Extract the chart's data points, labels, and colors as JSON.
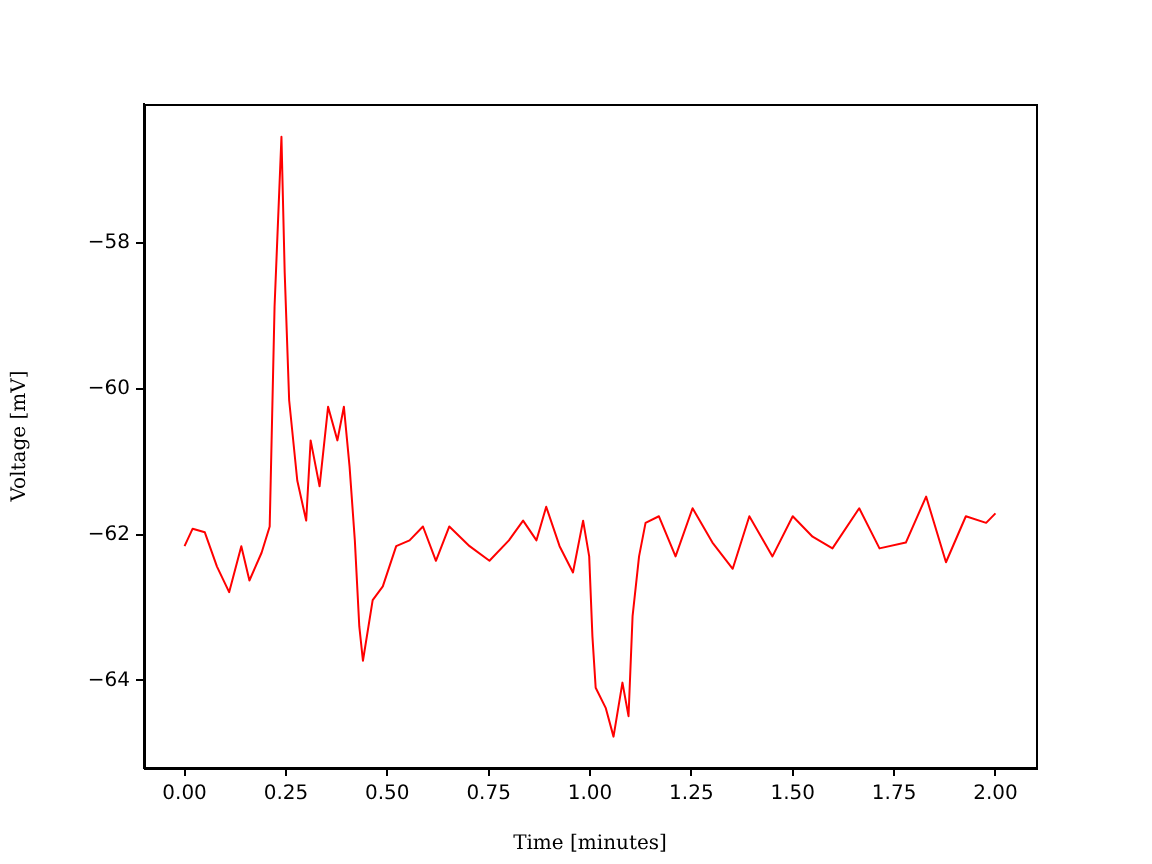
{
  "chart_data": {
    "type": "line",
    "xlabel": "Time [minutes]",
    "ylabel": "Voltage [mV]",
    "x": [
      0,
      0.02,
      0.05,
      0.08,
      0.11,
      0.14,
      0.16,
      0.19,
      0.21,
      0.222,
      0.239,
      0.247,
      0.258,
      0.278,
      0.3,
      0.311,
      0.333,
      0.354,
      0.377,
      0.393,
      0.407,
      0.42,
      0.431,
      0.44,
      0.464,
      0.489,
      0.522,
      0.555,
      0.588,
      0.62,
      0.653,
      0.703,
      0.752,
      0.8,
      0.835,
      0.868,
      0.892,
      0.925,
      0.958,
      0.983,
      0.998,
      1.006,
      1.014,
      1.039,
      1.058,
      1.08,
      1.095,
      1.105,
      1.121,
      1.137,
      1.17,
      1.211,
      1.253,
      1.302,
      1.352,
      1.393,
      1.45,
      1.5,
      1.549,
      1.598,
      1.664,
      1.714,
      1.779,
      1.829,
      1.878,
      1.927,
      1.977,
      2.0
    ],
    "series": [
      {
        "color": "#ff0000",
        "values": [
          -62.16,
          -61.92,
          -61.97,
          -62.44,
          -62.79,
          -62.16,
          -62.63,
          -62.25,
          -61.89,
          -58.88,
          -56.55,
          -58.41,
          -60.16,
          -61.26,
          -61.81,
          -60.71,
          -61.34,
          -60.25,
          -60.71,
          -60.25,
          -61.07,
          -62.08,
          -63.26,
          -63.73,
          -62.9,
          -62.71,
          -62.16,
          -62.08,
          -61.89,
          -62.36,
          -61.89,
          -62.16,
          -62.36,
          -62.08,
          -61.81,
          -62.08,
          -61.62,
          -62.16,
          -62.52,
          -61.81,
          -62.3,
          -63.4,
          -64.1,
          -64.38,
          -64.77,
          -64.03,
          -64.49,
          -63.12,
          -62.3,
          -61.84,
          -61.75,
          -62.3,
          -61.64,
          -62.11,
          -62.47,
          -61.75,
          -62.3,
          -61.75,
          -62.03,
          -62.19,
          -61.64,
          -62.19,
          -62.11,
          -61.48,
          -62.38,
          -61.75,
          -61.84,
          -61.71
        ]
      }
    ],
    "xlim": [
      -0.1,
      2.1
    ],
    "ylim": [
      -65.2,
      -56.1
    ],
    "xticks": [
      {
        "value": 0,
        "label": "0.00"
      },
      {
        "value": 0.25,
        "label": "0.25"
      },
      {
        "value": 0.5,
        "label": "0.50"
      },
      {
        "value": 0.75,
        "label": "0.75"
      },
      {
        "value": 1,
        "label": "1.00"
      },
      {
        "value": 1.25,
        "label": "1.25"
      },
      {
        "value": 1.5,
        "label": "1.50"
      },
      {
        "value": 1.75,
        "label": "1.75"
      },
      {
        "value": 2,
        "label": "2.00"
      }
    ],
    "yticks": [
      {
        "value": -64,
        "label": "−64"
      },
      {
        "value": -62,
        "label": "−62"
      },
      {
        "value": -60,
        "label": "−60"
      },
      {
        "value": -58,
        "label": "−58"
      }
    ],
    "grid": false,
    "legend": false,
    "marker": "none",
    "line_style": "solid"
  }
}
